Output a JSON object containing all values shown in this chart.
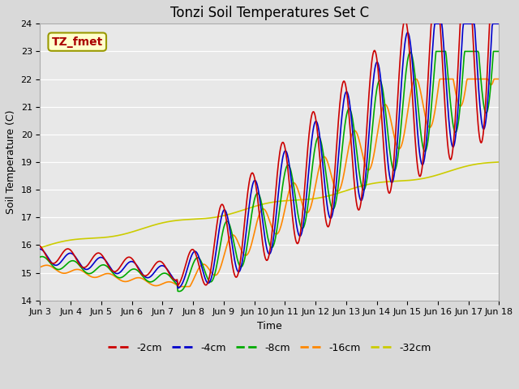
{
  "title": "Tonzi Soil Temperatures Set C",
  "xlabel": "Time",
  "ylabel": "Soil Temperature (C)",
  "ylim": [
    14.0,
    24.0
  ],
  "yticks": [
    14.0,
    15.0,
    16.0,
    17.0,
    18.0,
    19.0,
    20.0,
    21.0,
    22.0,
    23.0,
    24.0
  ],
  "xtick_labels": [
    "Jun 3",
    "Jun 4",
    "Jun 5",
    "Jun 6",
    "Jun 7",
    "Jun 8",
    "Jun 9",
    "Jun 10",
    "Jun 11",
    "Jun 12",
    "Jun 13",
    "Jun 14",
    "Jun 15",
    "Jun 16",
    "Jun 17",
    "Jun 18"
  ],
  "series_colors": [
    "#cc0000",
    "#0000cc",
    "#00aa00",
    "#ff8800",
    "#cccc00"
  ],
  "series_labels": [
    "-2cm",
    "-4cm",
    "-8cm",
    "-16cm",
    "-32cm"
  ],
  "legend_label": "TZ_fmet",
  "legend_label_color": "#aa0000",
  "legend_bg_color": "#ffffcc",
  "fig_bg_color": "#d9d9d9",
  "plot_bg_color": "#e8e8e8",
  "title_fontsize": 12,
  "axis_fontsize": 9,
  "tick_fontsize": 8,
  "legend_fontsize": 9
}
